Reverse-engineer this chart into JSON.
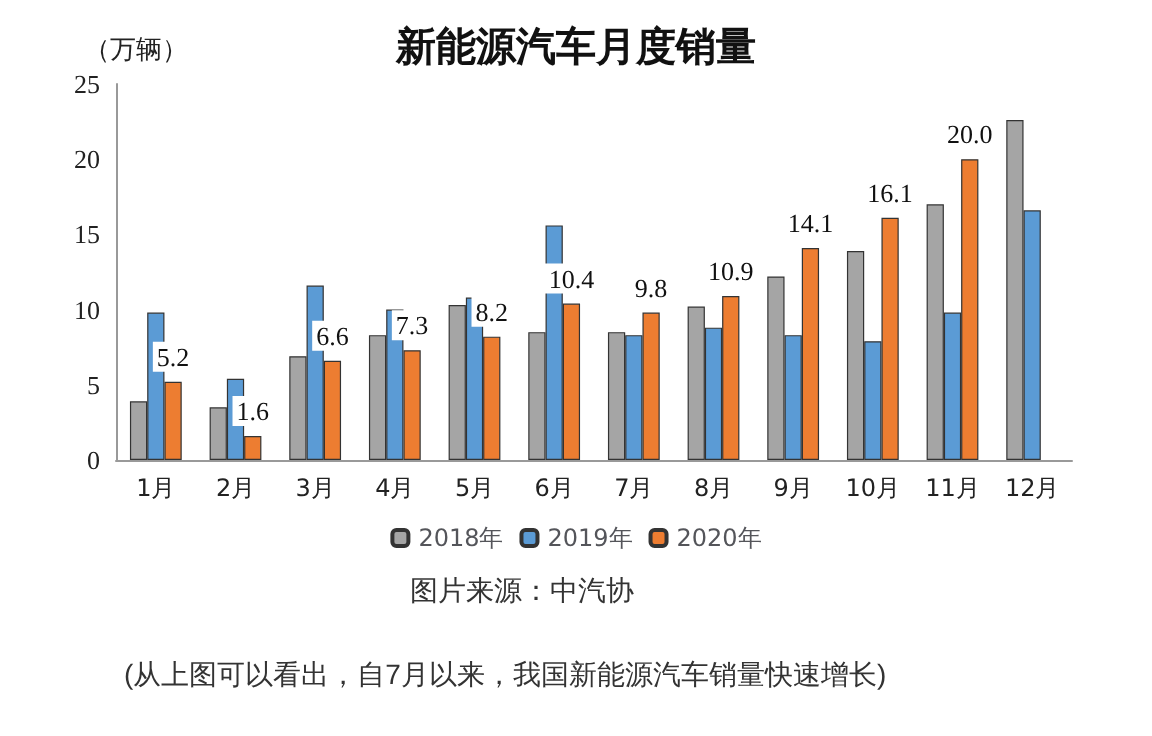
{
  "chart_data": {
    "type": "bar",
    "title": "新能源汽车月度销量",
    "ylabel": "（万辆）",
    "categories": [
      "1月",
      "2月",
      "3月",
      "4月",
      "5月",
      "6月",
      "7月",
      "8月",
      "9月",
      "10月",
      "11月",
      "12月"
    ],
    "series": [
      {
        "name": "2018年",
        "color": "#a5a5a5",
        "values": [
          3.9,
          3.5,
          6.9,
          8.3,
          10.3,
          8.5,
          8.5,
          10.2,
          12.2,
          13.9,
          17.0,
          22.6
        ]
      },
      {
        "name": "2019年",
        "color": "#5b9bd5",
        "values": [
          9.8,
          5.4,
          11.6,
          10.0,
          10.8,
          15.6,
          8.3,
          8.8,
          8.3,
          7.9,
          9.8,
          16.6
        ]
      },
      {
        "name": "2020年",
        "color": "#ed7d31",
        "values": [
          5.2,
          1.6,
          6.6,
          7.3,
          8.2,
          10.4,
          9.8,
          10.9,
          14.1,
          16.1,
          20.0,
          null
        ],
        "value_labels": [
          "5.2",
          "1.6",
          "6.6",
          "7.3",
          "8.2",
          "10.4",
          "9.8",
          "10.9",
          "14.1",
          "16.1",
          "20.0",
          null
        ]
      }
    ],
    "ylim": [
      0,
      25
    ],
    "yticks": [
      0,
      5,
      10,
      15,
      20,
      25
    ],
    "grid": false,
    "legend": "bottom",
    "annotations": [
      "图片来源：中汽协",
      "(从上图可以看出，自7月以来，我国新能源汽车销量快速增长)"
    ]
  }
}
